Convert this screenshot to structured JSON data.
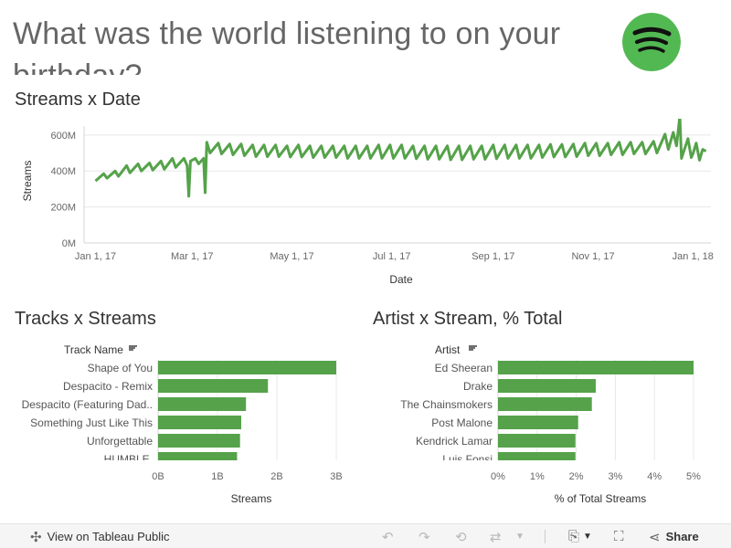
{
  "header": {
    "title": "What was the world listening to on your birthday?"
  },
  "colors": {
    "accent": "#55a24a",
    "logo_bg": "#52b852",
    "logo_fg": "#111111",
    "grid": "#e8e8e8"
  },
  "icons": {
    "logo": "spotify-logo",
    "view_public": "tableau-icon",
    "undo": "undo-icon",
    "redo": "redo-icon",
    "revert": "revert-icon",
    "refresh": "refresh-icon",
    "download": "download-icon",
    "fullscreen": "fullscreen-icon",
    "share": "share-icon",
    "sort": "sort-icon"
  },
  "footer": {
    "view_label": "View on Tableau Public",
    "share_label": "Share"
  },
  "chart_data": [
    {
      "id": "streams_by_date",
      "type": "line",
      "title": "Streams x Date",
      "xlabel": "Date",
      "ylabel": "Streams",
      "x_ticks": [
        "Jan 1, 17",
        "Mar 1, 17",
        "May 1, 17",
        "Jul 1, 17",
        "Sep 1, 17",
        "Nov 1, 17",
        "Jan 1, 18"
      ],
      "y_ticks": [
        "0M",
        "200M",
        "400M",
        "600M"
      ],
      "ylim": [
        0,
        650
      ],
      "xlim": [
        "2016-12-25",
        "2018-01-12"
      ],
      "y_unit": "M",
      "grid": true,
      "series": [
        {
          "x": [
            "2017-01-01",
            "2017-01-06",
            "2017-01-08",
            "2017-01-13",
            "2017-01-15",
            "2017-01-20",
            "2017-01-22",
            "2017-01-27",
            "2017-01-29",
            "2017-02-03",
            "2017-02-05",
            "2017-02-10",
            "2017-02-12",
            "2017-02-17",
            "2017-02-19",
            "2017-02-24",
            "2017-02-26",
            "2017-02-27",
            "2017-02-28",
            "2017-03-03",
            "2017-03-05",
            "2017-03-08",
            "2017-03-09",
            "2017-03-10",
            "2017-03-12",
            "2017-03-17",
            "2017-03-19",
            "2017-03-24",
            "2017-03-26",
            "2017-03-31",
            "2017-04-02",
            "2017-04-07",
            "2017-04-09",
            "2017-04-14",
            "2017-04-16",
            "2017-04-21",
            "2017-04-23",
            "2017-04-28",
            "2017-04-30",
            "2017-05-05",
            "2017-05-07",
            "2017-05-12",
            "2017-05-14",
            "2017-05-19",
            "2017-05-21",
            "2017-05-26",
            "2017-05-28",
            "2017-06-02",
            "2017-06-04",
            "2017-06-09",
            "2017-06-11",
            "2017-06-16",
            "2017-06-18",
            "2017-06-23",
            "2017-06-25",
            "2017-06-30",
            "2017-07-02",
            "2017-07-07",
            "2017-07-09",
            "2017-07-14",
            "2017-07-16",
            "2017-07-21",
            "2017-07-23",
            "2017-07-28",
            "2017-07-30",
            "2017-08-04",
            "2017-08-06",
            "2017-08-11",
            "2017-08-13",
            "2017-08-18",
            "2017-08-20",
            "2017-08-25",
            "2017-08-27",
            "2017-09-01",
            "2017-09-03",
            "2017-09-08",
            "2017-09-10",
            "2017-09-15",
            "2017-09-17",
            "2017-09-22",
            "2017-09-24",
            "2017-09-29",
            "2017-10-01",
            "2017-10-06",
            "2017-10-08",
            "2017-10-13",
            "2017-10-15",
            "2017-10-20",
            "2017-10-22",
            "2017-10-27",
            "2017-10-29",
            "2017-11-03",
            "2017-11-05",
            "2017-11-10",
            "2017-11-12",
            "2017-11-17",
            "2017-11-19",
            "2017-11-24",
            "2017-11-26",
            "2017-12-01",
            "2017-12-03",
            "2017-12-08",
            "2017-12-10",
            "2017-12-15",
            "2017-12-17",
            "2017-12-20",
            "2017-12-22",
            "2017-12-24",
            "2017-12-25",
            "2017-12-29",
            "2017-12-31",
            "2018-01-01",
            "2018-01-03",
            "2018-01-05",
            "2018-01-07",
            "2018-01-09"
          ],
          "y": [
            345,
            385,
            360,
            400,
            370,
            430,
            390,
            440,
            400,
            445,
            405,
            455,
            410,
            470,
            420,
            470,
            430,
            260,
            455,
            470,
            440,
            470,
            280,
            560,
            500,
            555,
            495,
            550,
            490,
            550,
            485,
            545,
            480,
            545,
            480,
            545,
            480,
            540,
            478,
            545,
            478,
            540,
            475,
            540,
            475,
            540,
            475,
            540,
            470,
            540,
            470,
            540,
            470,
            545,
            470,
            545,
            470,
            545,
            470,
            540,
            468,
            540,
            465,
            540,
            465,
            540,
            462,
            540,
            462,
            540,
            465,
            540,
            465,
            545,
            468,
            545,
            470,
            545,
            470,
            545,
            470,
            545,
            475,
            548,
            478,
            548,
            478,
            550,
            480,
            555,
            485,
            555,
            485,
            555,
            490,
            560,
            490,
            560,
            495,
            560,
            495,
            565,
            500,
            605,
            520,
            615,
            540,
            705,
            470,
            580,
            475,
            495,
            555,
            460,
            520,
            510
          ]
        }
      ]
    },
    {
      "id": "tracks_by_streams",
      "type": "bar",
      "orientation": "horizontal",
      "title": "Tracks x Streams",
      "category_header": "Track Name",
      "xlabel": "Streams",
      "x_ticks": [
        "0B",
        "1B",
        "2B",
        "3B"
      ],
      "xlim": [
        0,
        3.0
      ],
      "unit": "B",
      "categories": [
        "Shape of You",
        "Despacito - Remix",
        "Despacito (Featuring Dad..",
        "Something Just Like This",
        "Unforgettable",
        "HUMBLE."
      ],
      "values": [
        3.05,
        1.85,
        1.48,
        1.4,
        1.38,
        1.33
      ]
    },
    {
      "id": "artists_by_share",
      "type": "bar",
      "orientation": "horizontal",
      "title": "Artist x Stream, % Total",
      "category_header": "Artist",
      "xlabel": "% of Total Streams",
      "x_ticks": [
        "0%",
        "1%",
        "2%",
        "3%",
        "4%",
        "5%"
      ],
      "xlim": [
        0,
        5
      ],
      "unit": "%",
      "categories": [
        "Ed Sheeran",
        "Drake",
        "The Chainsmokers",
        "Post Malone",
        "Kendrick Lamar",
        "Luis Fonsi"
      ],
      "values": [
        5.0,
        2.5,
        2.4,
        2.05,
        1.98,
        1.98
      ]
    }
  ]
}
